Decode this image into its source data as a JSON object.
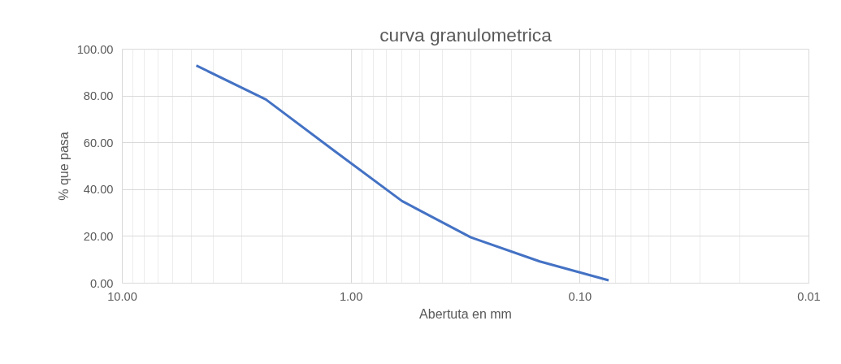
{
  "chart_data": {
    "type": "line",
    "title": "curva granulometrica",
    "xlabel": "Abertuta en mm",
    "ylabel": "% que pasa",
    "x": [
      4.75,
      2.36,
      1.18,
      0.6,
      0.3,
      0.15,
      0.075
    ],
    "series": [
      {
        "color": "#4472c4",
        "values": [
          93,
          78.5,
          56.4,
          35.1,
          19.6,
          9.3,
          1.2
        ]
      }
    ],
    "log": "x",
    "xlim": [
      10,
      0.01
    ],
    "xticks": [
      {
        "value": 10,
        "label": "10.00"
      },
      {
        "value": 1,
        "label": "1.00"
      },
      {
        "value": 0.1,
        "label": "0.10"
      },
      {
        "value": 0.01,
        "label": "0.01"
      }
    ],
    "ylim": [
      0,
      100
    ],
    "yticks": [
      {
        "value": 0,
        "label": "0.00"
      },
      {
        "value": 20,
        "label": "20.00"
      },
      {
        "value": 40,
        "label": "40.00"
      },
      {
        "value": 60,
        "label": "60.00"
      },
      {
        "value": 80,
        "label": "80.00"
      },
      {
        "value": 100,
        "label": "100.00"
      }
    ],
    "grid": true,
    "marker": "none",
    "line_style": "solid"
  }
}
